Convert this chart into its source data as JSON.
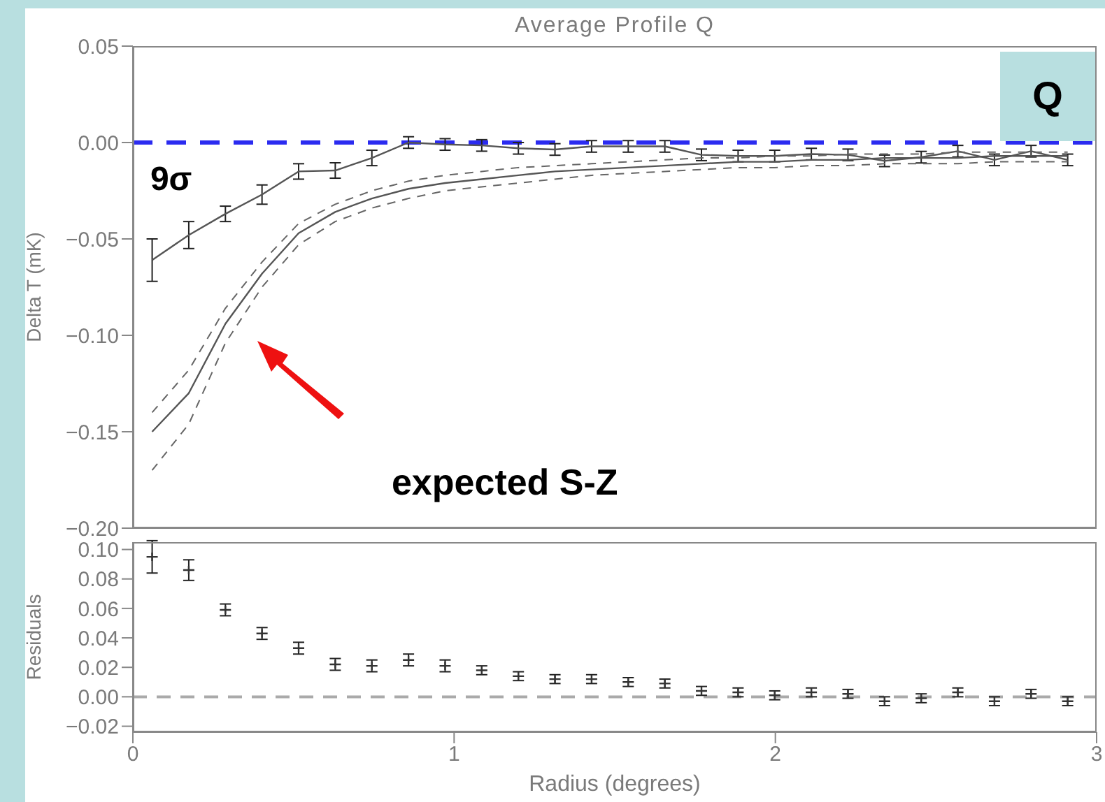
{
  "chart_data": [
    {
      "type": "line",
      "title": "Average Profile Q",
      "ylabel": "Delta T (mK)",
      "xlim": [
        0,
        3
      ],
      "xticks": [
        0,
        1,
        2,
        3
      ],
      "ylim": [
        -0.2,
        0.05
      ],
      "yticks": [
        {
          "value": -0.2,
          "label": "−0.20"
        },
        {
          "value": -0.15,
          "label": "−0.15"
        },
        {
          "value": -0.1,
          "label": "−0.10"
        },
        {
          "value": -0.05,
          "label": "−0.05"
        },
        {
          "value": 0,
          "label": "0.00"
        },
        {
          "value": 0.05,
          "label": "0.05"
        }
      ],
      "tick_labels": "y",
      "grid": false,
      "marker": "none",
      "x": [
        0.06,
        0.174,
        0.288,
        0.402,
        0.516,
        0.63,
        0.744,
        0.858,
        0.972,
        1.086,
        1.2,
        1.314,
        1.428,
        1.542,
        1.656,
        1.77,
        1.884,
        1.998,
        2.112,
        2.226,
        2.34,
        2.454,
        2.568,
        2.682,
        2.796,
        2.91
      ],
      "series": [
        {
          "color": "#555555",
          "line_style": "solid",
          "values": [
            -0.061,
            -0.048,
            -0.037,
            -0.027,
            -0.015,
            -0.0145,
            -0.008,
            0,
            -0.001,
            -0.0015,
            -0.003,
            -0.0036,
            -0.002,
            -0.002,
            -0.002,
            -0.0064,
            -0.007,
            -0.007,
            -0.006,
            -0.0064,
            -0.0095,
            -0.0076,
            -0.0045,
            -0.009,
            -0.0045,
            -0.009
          ],
          "errors": [
            0.011,
            0.007,
            0.004,
            0.005,
            0.004,
            0.004,
            0.004,
            0.003,
            0.003,
            0.003,
            0.003,
            0.003,
            0.003,
            0.003,
            0.003,
            0.003,
            0.003,
            0.003,
            0.003,
            0.003,
            0.003,
            0.003,
            0.003,
            0.003,
            0.003,
            0.003
          ]
        },
        {
          "color": "#555555",
          "line_style": "solid",
          "values": [
            -0.15,
            -0.13,
            -0.094,
            -0.068,
            -0.047,
            -0.036,
            -0.029,
            -0.024,
            -0.021,
            -0.019,
            -0.017,
            -0.015,
            -0.014,
            -0.013,
            -0.012,
            -0.011,
            -0.01,
            -0.01,
            -0.009,
            -0.009,
            -0.008,
            -0.008,
            -0.008,
            -0.007,
            -0.007,
            -0.007
          ]
        },
        {
          "color": "#666666",
          "line_style": "dashed",
          "values": [
            -0.17,
            -0.146,
            -0.104,
            -0.075,
            -0.053,
            -0.041,
            -0.034,
            -0.029,
            -0.025,
            -0.023,
            -0.021,
            -0.019,
            -0.017,
            -0.016,
            -0.015,
            -0.014,
            -0.013,
            -0.013,
            -0.012,
            -0.012,
            -0.011,
            -0.011,
            -0.011,
            -0.01,
            -0.01,
            -0.01
          ]
        },
        {
          "color": "#666666",
          "line_style": "dashed",
          "values": [
            -0.14,
            -0.118,
            -0.086,
            -0.062,
            -0.042,
            -0.032,
            -0.025,
            -0.02,
            -0.017,
            -0.015,
            -0.013,
            -0.012,
            -0.011,
            -0.01,
            -0.009,
            -0.008,
            -0.008,
            -0.007,
            -0.007,
            -0.006,
            -0.006,
            -0.006,
            -0.005,
            -0.005,
            -0.005,
            -0.005
          ]
        }
      ],
      "ref_lines": [
        {
          "axis": "y",
          "value": 0,
          "color": "#2b2bf0",
          "line_style": "dashed"
        }
      ],
      "annotations": [
        "9σ",
        "expected S-Z",
        "Q"
      ]
    },
    {
      "type": "scatter",
      "xlabel": "Radius (degrees)",
      "ylabel": "Residuals",
      "xlim": [
        0,
        3
      ],
      "xticks": [
        0,
        1,
        2,
        3
      ],
      "ylim": [
        -0.024,
        0.105
      ],
      "yticks": [
        {
          "value": -0.02,
          "label": "−0.02"
        },
        {
          "value": 0,
          "label": "0.00"
        },
        {
          "value": 0.02,
          "label": "0.02"
        },
        {
          "value": 0.04,
          "label": "0.04"
        },
        {
          "value": 0.06,
          "label": "0.06"
        },
        {
          "value": 0.08,
          "label": "0.08"
        },
        {
          "value": 0.1,
          "label": "0.10"
        }
      ],
      "grid": false,
      "marker": "cross",
      "x": [
        0.06,
        0.174,
        0.288,
        0.402,
        0.516,
        0.63,
        0.744,
        0.858,
        0.972,
        1.086,
        1.2,
        1.314,
        1.428,
        1.542,
        1.656,
        1.77,
        1.884,
        1.998,
        2.112,
        2.226,
        2.34,
        2.454,
        2.568,
        2.682,
        2.796,
        2.91
      ],
      "series": [
        {
          "color": "#333333",
          "values": [
            0.095,
            0.086,
            0.059,
            0.043,
            0.033,
            0.022,
            0.021,
            0.025,
            0.021,
            0.018,
            0.014,
            0.012,
            0.012,
            0.01,
            0.009,
            0.004,
            0.003,
            0.001,
            0.003,
            0.002,
            -0.003,
            -0.001,
            0.003,
            -0.003,
            0.002,
            -0.003
          ],
          "errors": [
            0.011,
            0.007,
            0.004,
            0.004,
            0.004,
            0.004,
            0.004,
            0.004,
            0.004,
            0.003,
            0.003,
            0.003,
            0.003,
            0.003,
            0.003,
            0.003,
            0.003,
            0.003,
            0.003,
            0.003,
            0.003,
            0.003,
            0.003,
            0.003,
            0.003,
            0.003
          ]
        }
      ],
      "ref_lines": [
        {
          "axis": "y",
          "value": 0,
          "color": "#aaaaaa",
          "line_style": "dashed"
        }
      ]
    }
  ]
}
